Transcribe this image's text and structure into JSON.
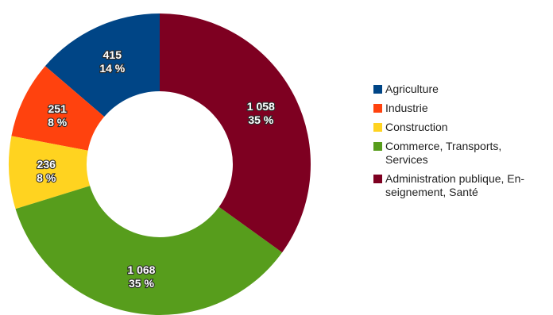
{
  "chart_data": {
    "type": "pie",
    "donut": true,
    "legend_position": "right",
    "categories": [
      "Agriculture",
      "Industrie",
      "Construction",
      "Commerce, Transports,\nServices",
      "Administration publique, En-\nseignement, Santé"
    ],
    "values": [
      415,
      251,
      236,
      1068,
      1058
    ],
    "value_labels": [
      "415",
      "251",
      "236",
      "1 068",
      "1 058"
    ],
    "percent_labels": [
      "14 %",
      "8 %",
      "8 %",
      "35 %",
      "35 %"
    ],
    "colors": [
      "#004586",
      "#ff420e",
      "#ffd320",
      "#579d1c",
      "#7e0021"
    ]
  }
}
